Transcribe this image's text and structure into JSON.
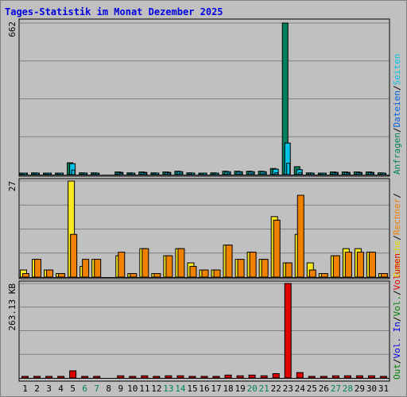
{
  "title": "Tages-Statistik im Monat Dezember 2025",
  "colors": {
    "anfragen": "#00805c",
    "dateien": "#00c4e6",
    "seiten": "#00c4e6",
    "besuche": "#f8e820",
    "rechner": "#f08000",
    "vol_in": "#0000e0",
    "vol_out": "#008000",
    "volumen": "#e00000",
    "panel": "#c0c0c0",
    "grid": "#808080",
    "weekend": "#008060",
    "day": "#000000"
  },
  "chart_data": [
    {
      "type": "bar",
      "panel": "top",
      "ymax_label": "662",
      "ylim": [
        0,
        662
      ],
      "grid": true,
      "right_label_parts": [
        {
          "text": "Anfragen",
          "color": "#00805c"
        },
        {
          "text": "/",
          "color": "#000000"
        },
        {
          "text": "Dateien",
          "color": "#0060e0"
        },
        {
          "text": "/",
          "color": "#000000"
        },
        {
          "text": "Seiten",
          "color": "#00c4e6"
        }
      ],
      "categories": [
        "1",
        "2",
        "3",
        "4",
        "5",
        "6",
        "7",
        "8",
        "9",
        "10",
        "11",
        "12",
        "13",
        "14",
        "15",
        "16",
        "17",
        "18",
        "19",
        "20",
        "21",
        "22",
        "23",
        "24",
        "25",
        "26",
        "27",
        "28",
        "29",
        "30",
        "31"
      ],
      "series": [
        {
          "name": "Anfragen",
          "values": [
            5,
            8,
            5,
            5,
            52,
            8,
            8,
            0,
            12,
            8,
            12,
            8,
            12,
            15,
            8,
            5,
            8,
            15,
            15,
            15,
            15,
            27,
            662,
            35,
            8,
            5,
            12,
            12,
            12,
            12,
            8
          ]
        },
        {
          "name": "Dateien",
          "values": [
            4,
            6,
            4,
            4,
            48,
            6,
            6,
            0,
            10,
            6,
            10,
            6,
            10,
            13,
            6,
            4,
            6,
            13,
            13,
            13,
            13,
            24,
            138,
            22,
            6,
            4,
            10,
            10,
            10,
            10,
            6
          ]
        },
        {
          "name": "Seiten",
          "values": [
            2,
            3,
            2,
            2,
            20,
            3,
            3,
            0,
            5,
            3,
            5,
            3,
            5,
            6,
            3,
            2,
            3,
            6,
            6,
            6,
            6,
            8,
            50,
            8,
            3,
            2,
            5,
            5,
            5,
            5,
            3
          ]
        }
      ]
    },
    {
      "type": "bar",
      "panel": "middle",
      "ymax_label": "27",
      "ylim": [
        0,
        27
      ],
      "grid": true,
      "right_label_parts": [
        {
          "text": "Besuche",
          "color": "#e8d800"
        },
        {
          "text": "/",
          "color": "#000000"
        },
        {
          "text": "Rechner",
          "color": "#f08000"
        },
        {
          "text": "/",
          "color": "#000000"
        }
      ],
      "categories": [
        "1",
        "2",
        "3",
        "4",
        "5",
        "6",
        "7",
        "8",
        "9",
        "10",
        "11",
        "12",
        "13",
        "14",
        "15",
        "16",
        "17",
        "18",
        "19",
        "20",
        "21",
        "22",
        "23",
        "24",
        "25",
        "26",
        "27",
        "28",
        "29",
        "30",
        "31"
      ],
      "series": [
        {
          "name": "Besuche",
          "values": [
            2,
            5,
            2,
            1,
            27,
            3,
            5,
            0,
            6,
            1,
            8,
            1,
            6,
            8,
            4,
            2,
            2,
            9,
            5,
            7,
            5,
            17,
            4,
            12,
            4,
            1,
            6,
            8,
            8,
            7,
            1
          ]
        },
        {
          "name": "Rechner",
          "values": [
            1,
            5,
            2,
            1,
            12,
            5,
            5,
            0,
            7,
            1,
            8,
            1,
            6,
            8,
            3,
            2,
            2,
            9,
            5,
            7,
            5,
            16,
            4,
            23,
            2,
            1,
            6,
            7,
            7,
            7,
            1
          ]
        }
      ]
    },
    {
      "type": "bar",
      "panel": "bottom",
      "ymax_label": "263.13 KB",
      "ylim": [
        0,
        263.13
      ],
      "grid": true,
      "right_label_parts": [
        {
          "text": "Out",
          "color": "#008000"
        },
        {
          "text": "/",
          "color": "#000000"
        },
        {
          "text": "Vol. In",
          "color": "#0000e0"
        },
        {
          "text": "/",
          "color": "#000000"
        },
        {
          "text": "Vol.",
          "color": "#008000"
        },
        {
          "text": "/",
          "color": "#000000"
        },
        {
          "text": "Volumen",
          "color": "#e00000"
        }
      ],
      "categories": [
        "1",
        "2",
        "3",
        "4",
        "5",
        "6",
        "7",
        "8",
        "9",
        "10",
        "11",
        "12",
        "13",
        "14",
        "15",
        "16",
        "17",
        "18",
        "19",
        "20",
        "21",
        "22",
        "23",
        "24",
        "25",
        "26",
        "27",
        "28",
        "29",
        "30",
        "31"
      ],
      "series": [
        {
          "name": "Volumen",
          "values": [
            3,
            3,
            3,
            3,
            20,
            3,
            3,
            0,
            6,
            3,
            6,
            3,
            6,
            6,
            3,
            3,
            3,
            8,
            6,
            8,
            6,
            12,
            263.13,
            15,
            3,
            3,
            6,
            6,
            6,
            6,
            3
          ]
        }
      ]
    }
  ],
  "x_labels": [
    {
      "text": "1",
      "weekend": false
    },
    {
      "text": "2",
      "weekend": false
    },
    {
      "text": "3",
      "weekend": false
    },
    {
      "text": "4",
      "weekend": false
    },
    {
      "text": "5",
      "weekend": false
    },
    {
      "text": "6",
      "weekend": true
    },
    {
      "text": "7",
      "weekend": true
    },
    {
      "text": "8",
      "weekend": false
    },
    {
      "text": "9",
      "weekend": false
    },
    {
      "text": "10",
      "weekend": false
    },
    {
      "text": "11",
      "weekend": false
    },
    {
      "text": "12",
      "weekend": false
    },
    {
      "text": "13",
      "weekend": true
    },
    {
      "text": "14",
      "weekend": true
    },
    {
      "text": "15",
      "weekend": false
    },
    {
      "text": "16",
      "weekend": false
    },
    {
      "text": "17",
      "weekend": false
    },
    {
      "text": "18",
      "weekend": false
    },
    {
      "text": "19",
      "weekend": false
    },
    {
      "text": "20",
      "weekend": true
    },
    {
      "text": "21",
      "weekend": true
    },
    {
      "text": "22",
      "weekend": false
    },
    {
      "text": "23",
      "weekend": false
    },
    {
      "text": "24",
      "weekend": false
    },
    {
      "text": "25",
      "weekend": false
    },
    {
      "text": "26",
      "weekend": false
    },
    {
      "text": "27",
      "weekend": true
    },
    {
      "text": "28",
      "weekend": true
    },
    {
      "text": "29",
      "weekend": false
    },
    {
      "text": "30",
      "weekend": false
    },
    {
      "text": "31",
      "weekend": false
    }
  ]
}
